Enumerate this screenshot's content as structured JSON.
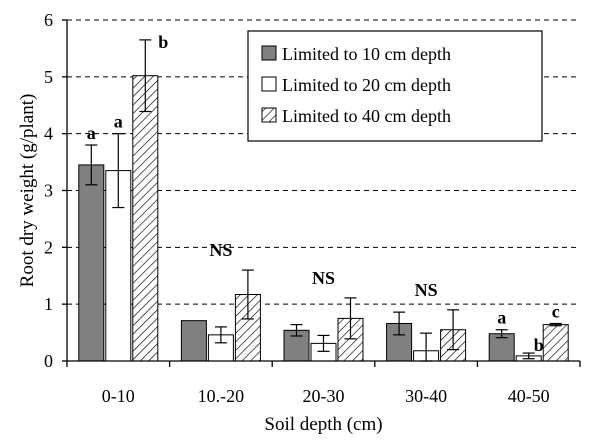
{
  "chart_data": {
    "type": "bar",
    "title": "",
    "xlabel": "Soil depth  (cm)",
    "ylabel": "Root dry weight  (g/plant)",
    "ylim": [
      0,
      6
    ],
    "yticks": [
      0,
      1,
      2,
      3,
      4,
      5,
      6
    ],
    "grid": "horizontal dashed",
    "legend_position": "top-right",
    "categories": [
      "0-10",
      "10.-20",
      "20-30",
      "30-40",
      "40-50"
    ],
    "series": [
      {
        "name": "Limited to 10 cm depth",
        "fill": "#808080",
        "pattern": "solid",
        "values": [
          3.45,
          0.71,
          0.54,
          0.66,
          0.48
        ],
        "errors": [
          0.35,
          0.0,
          0.1,
          0.2,
          0.07
        ]
      },
      {
        "name": "Limited to 20 cm depth",
        "fill": "#ffffff",
        "pattern": "none",
        "values": [
          3.35,
          0.46,
          0.31,
          0.18,
          0.09
        ],
        "errors": [
          0.65,
          0.14,
          0.14,
          0.31,
          0.05
        ]
      },
      {
        "name": "Limited to 40 cm depth",
        "fill": "#ffffff",
        "pattern": "diagonal-hatch",
        "values": [
          5.02,
          1.17,
          0.75,
          0.55,
          0.64
        ],
        "errors": [
          0.63,
          0.43,
          0.36,
          0.35,
          0.02
        ]
      }
    ],
    "annotations": [
      {
        "category": "0-10",
        "series": 0,
        "text": "a"
      },
      {
        "category": "0-10",
        "series": 1,
        "text": "a"
      },
      {
        "category": "0-10",
        "series": 2,
        "text": "b"
      },
      {
        "category": "10.-20",
        "series": 1,
        "text": "NS"
      },
      {
        "category": "20-30",
        "series": 1,
        "text": "NS"
      },
      {
        "category": "30-40",
        "series": 1,
        "text": "NS"
      },
      {
        "category": "40-50",
        "series": 0,
        "text": "a"
      },
      {
        "category": "40-50",
        "series": 1,
        "text": "b"
      },
      {
        "category": "40-50",
        "series": 2,
        "text": "c"
      }
    ]
  }
}
